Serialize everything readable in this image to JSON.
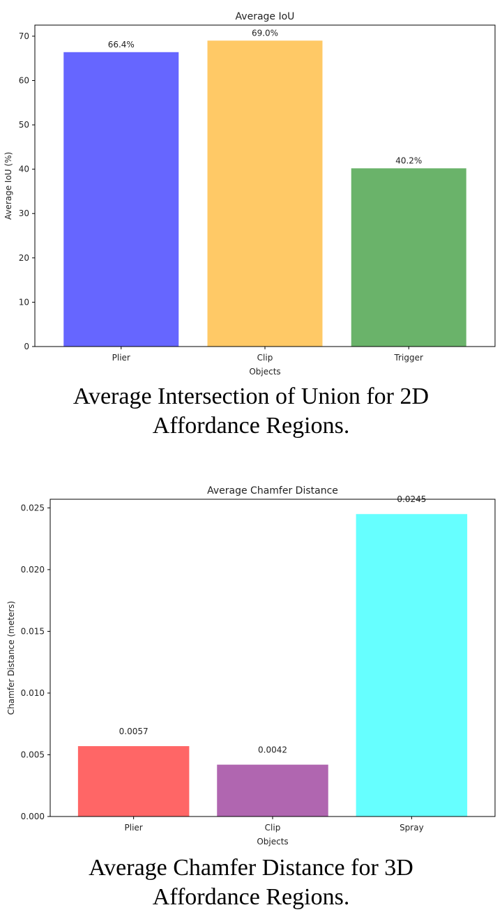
{
  "chart_data": [
    {
      "type": "bar",
      "title": "Average IoU",
      "xlabel": "Objects",
      "ylabel": "Average IoU (%)",
      "categories": [
        "Plier",
        "Clip",
        "Trigger"
      ],
      "values": [
        66.4,
        69.0,
        40.2
      ],
      "data_labels": [
        "66.4%",
        "69.0%",
        "40.2%"
      ],
      "colors": [
        "#6666ff",
        "#ffc966",
        "#6ab36a"
      ],
      "ylim": [
        0,
        72.5
      ],
      "yticks": [
        "0",
        "10",
        "20",
        "30",
        "40",
        "50",
        "60",
        "70"
      ],
      "grid": false
    },
    {
      "type": "bar",
      "title": "Average Chamfer Distance",
      "xlabel": "Objects",
      "ylabel": "Chamfer Distance (meters)",
      "categories": [
        "Plier",
        "Clip",
        "Spray"
      ],
      "values": [
        0.0057,
        0.0042,
        0.0245
      ],
      "data_labels": [
        "0.0057",
        "0.0042",
        "0.0245"
      ],
      "colors": [
        "#ff6666",
        "#b066b0",
        "#66ffff"
      ],
      "ylim": [
        0,
        0.0257
      ],
      "yticks": [
        "0.000",
        "0.005",
        "0.010",
        "0.015",
        "0.020",
        "0.025"
      ],
      "grid": false
    }
  ],
  "captions": {
    "chart1": [
      "Average Intersection of Union for 2D",
      "Affordance Regions."
    ],
    "chart2": [
      "Average Chamfer Distance for 3D",
      "Affordance Regions."
    ]
  }
}
